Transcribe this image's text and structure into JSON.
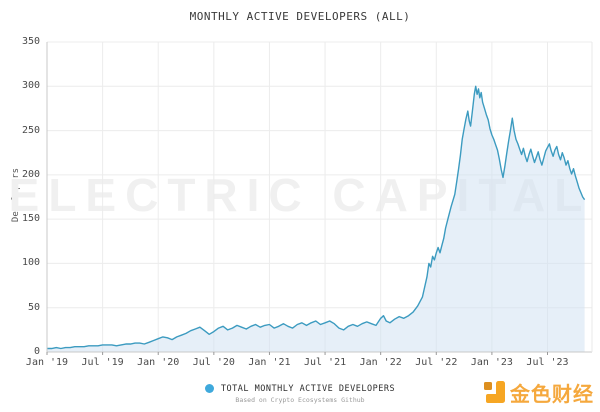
{
  "title": "MONTHLY ACTIVE DEVELOPERS (ALL)",
  "watermark": "ELECTRIC CAPITAL",
  "legend": {
    "label": "TOTAL MONTHLY ACTIVE DEVELOPERS",
    "dot_color": "#3fa9dc"
  },
  "caption": "Based on Crypto Ecosystems Github",
  "logo": {
    "text": "金色财经",
    "color": "#f5a83d",
    "icon_main_color": "#f6a623",
    "icon_accent_color": "#dd8f1f"
  },
  "chart_data": {
    "type": "area",
    "title": "MONTHLY ACTIVE DEVELOPERS (ALL)",
    "xlabel": "",
    "ylabel": "Developers",
    "ylim": [
      0,
      350
    ],
    "ytick_step": 50,
    "y_tick_labels": [
      "0",
      "50",
      "100",
      "150",
      "200",
      "250",
      "300",
      "350"
    ],
    "x_tick_labels": [
      "Jan '19",
      "Jul '19",
      "Jan '20",
      "Jul '20",
      "Jan '21",
      "Jul '21",
      "Jan '22",
      "Jul '22",
      "Jan '23",
      "Jul '23"
    ],
    "x_tick_positions": [
      0,
      6,
      12,
      18,
      24,
      30,
      36,
      42,
      48,
      54
    ],
    "x_range": [
      0,
      58.8
    ],
    "grid": true,
    "legend_position": "bottom",
    "colors": {
      "grid": "#ececec",
      "axis": "#c8c8c8",
      "border": "#e8e8e8"
    },
    "series": [
      {
        "name": "TOTAL MONTHLY ACTIVE DEVELOPERS",
        "color": "#3c9bc0",
        "fill": "#cde0f2",
        "fill_opacity": 0.5,
        "points": [
          [
            0,
            4
          ],
          [
            0.5,
            4
          ],
          [
            1,
            5
          ],
          [
            1.5,
            4
          ],
          [
            2,
            5
          ],
          [
            2.5,
            5
          ],
          [
            3,
            6
          ],
          [
            3.5,
            6
          ],
          [
            4,
            6
          ],
          [
            4.5,
            7
          ],
          [
            5,
            7
          ],
          [
            5.5,
            7
          ],
          [
            6,
            8
          ],
          [
            6.5,
            8
          ],
          [
            7,
            8
          ],
          [
            7.5,
            7
          ],
          [
            8,
            8
          ],
          [
            8.5,
            9
          ],
          [
            9,
            9
          ],
          [
            9.5,
            10
          ],
          [
            10,
            10
          ],
          [
            10.5,
            9
          ],
          [
            11,
            11
          ],
          [
            11.5,
            13
          ],
          [
            12,
            15
          ],
          [
            12.5,
            17
          ],
          [
            13,
            16
          ],
          [
            13.5,
            14
          ],
          [
            14,
            17
          ],
          [
            14.5,
            19
          ],
          [
            15,
            21
          ],
          [
            15.5,
            24
          ],
          [
            16,
            26
          ],
          [
            16.5,
            28
          ],
          [
            17,
            24
          ],
          [
            17.5,
            20
          ],
          [
            18,
            23
          ],
          [
            18.5,
            27
          ],
          [
            19,
            29
          ],
          [
            19.5,
            25
          ],
          [
            20,
            27
          ],
          [
            20.5,
            30
          ],
          [
            21,
            28
          ],
          [
            21.5,
            26
          ],
          [
            22,
            29
          ],
          [
            22.5,
            31
          ],
          [
            23,
            28
          ],
          [
            23.5,
            30
          ],
          [
            24,
            31
          ],
          [
            24.5,
            27
          ],
          [
            25,
            29
          ],
          [
            25.5,
            32
          ],
          [
            26,
            29
          ],
          [
            26.5,
            27
          ],
          [
            27,
            31
          ],
          [
            27.5,
            33
          ],
          [
            28,
            30
          ],
          [
            28.5,
            33
          ],
          [
            29,
            35
          ],
          [
            29.5,
            31
          ],
          [
            30,
            33
          ],
          [
            30.5,
            35
          ],
          [
            31,
            32
          ],
          [
            31.5,
            27
          ],
          [
            32,
            25
          ],
          [
            32.5,
            29
          ],
          [
            33,
            31
          ],
          [
            33.5,
            29
          ],
          [
            34,
            32
          ],
          [
            34.5,
            34
          ],
          [
            35,
            32
          ],
          [
            35.5,
            30
          ],
          [
            36,
            38
          ],
          [
            36.3,
            41
          ],
          [
            36.6,
            35
          ],
          [
            37,
            33
          ],
          [
            37.5,
            37
          ],
          [
            38,
            40
          ],
          [
            38.5,
            38
          ],
          [
            39,
            41
          ],
          [
            39.5,
            45
          ],
          [
            40,
            52
          ],
          [
            40.5,
            62
          ],
          [
            41,
            85
          ],
          [
            41.2,
            100
          ],
          [
            41.4,
            96
          ],
          [
            41.6,
            108
          ],
          [
            41.8,
            104
          ],
          [
            42,
            112
          ],
          [
            42.2,
            118
          ],
          [
            42.4,
            112
          ],
          [
            42.6,
            120
          ],
          [
            42.8,
            128
          ],
          [
            43,
            140
          ],
          [
            43.3,
            152
          ],
          [
            43.6,
            164
          ],
          [
            44,
            178
          ],
          [
            44.2,
            192
          ],
          [
            44.4,
            206
          ],
          [
            44.6,
            222
          ],
          [
            44.8,
            240
          ],
          [
            45,
            252
          ],
          [
            45.2,
            263
          ],
          [
            45.4,
            272
          ],
          [
            45.55,
            261
          ],
          [
            45.7,
            255
          ],
          [
            45.9,
            272
          ],
          [
            46.1,
            291
          ],
          [
            46.25,
            300
          ],
          [
            46.4,
            291
          ],
          [
            46.55,
            297
          ],
          [
            46.7,
            287
          ],
          [
            46.85,
            293
          ],
          [
            47,
            282
          ],
          [
            47.2,
            275
          ],
          [
            47.4,
            268
          ],
          [
            47.6,
            262
          ],
          [
            47.8,
            252
          ],
          [
            48,
            245
          ],
          [
            48.2,
            240
          ],
          [
            48.4,
            234
          ],
          [
            48.6,
            228
          ],
          [
            48.8,
            218
          ],
          [
            49,
            206
          ],
          [
            49.2,
            197
          ],
          [
            49.4,
            210
          ],
          [
            49.6,
            224
          ],
          [
            49.8,
            238
          ],
          [
            50,
            250
          ],
          [
            50.2,
            264
          ],
          [
            50.4,
            250
          ],
          [
            50.6,
            240
          ],
          [
            50.8,
            235
          ],
          [
            51,
            229
          ],
          [
            51.2,
            223
          ],
          [
            51.4,
            230
          ],
          [
            51.6,
            221
          ],
          [
            51.8,
            215
          ],
          [
            52,
            223
          ],
          [
            52.2,
            229
          ],
          [
            52.4,
            221
          ],
          [
            52.6,
            214
          ],
          [
            52.8,
            220
          ],
          [
            53,
            226
          ],
          [
            53.2,
            217
          ],
          [
            53.4,
            211
          ],
          [
            53.6,
            219
          ],
          [
            53.8,
            227
          ],
          [
            54,
            231
          ],
          [
            54.2,
            235
          ],
          [
            54.4,
            227
          ],
          [
            54.6,
            221
          ],
          [
            54.8,
            228
          ],
          [
            55,
            232
          ],
          [
            55.2,
            223
          ],
          [
            55.4,
            217
          ],
          [
            55.6,
            225
          ],
          [
            55.8,
            219
          ],
          [
            56,
            211
          ],
          [
            56.2,
            216
          ],
          [
            56.4,
            207
          ],
          [
            56.6,
            201
          ],
          [
            56.8,
            207
          ],
          [
            57,
            199
          ],
          [
            57.2,
            192
          ],
          [
            57.4,
            185
          ],
          [
            57.6,
            180
          ],
          [
            57.8,
            175
          ],
          [
            58,
            172
          ]
        ]
      }
    ]
  }
}
